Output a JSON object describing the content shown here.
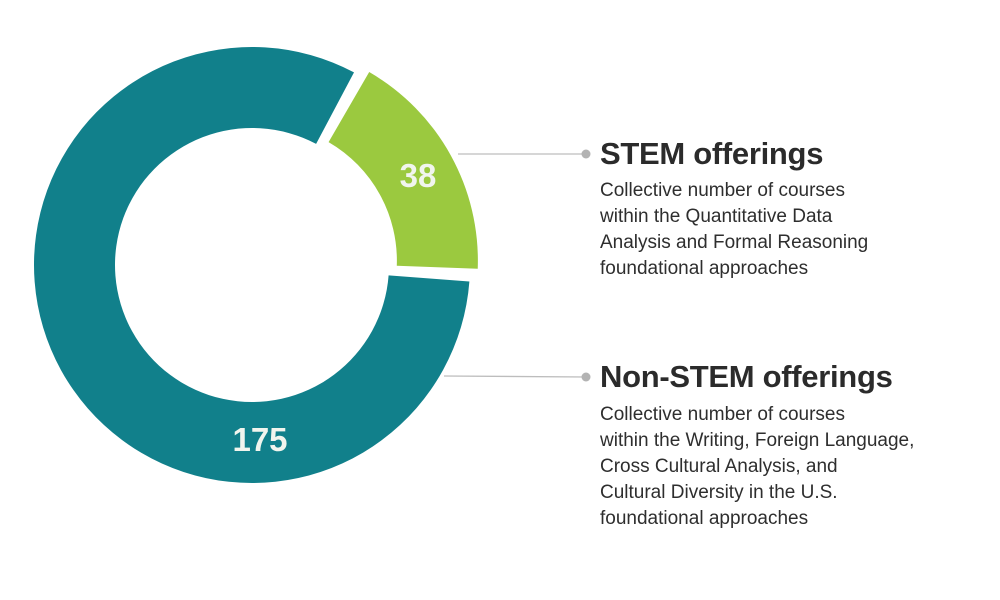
{
  "chart_data": {
    "type": "pie",
    "variant": "donut",
    "title": "",
    "categories": [
      "STEM offerings",
      "Non-STEM offerings"
    ],
    "values": [
      38,
      175
    ],
    "colors": [
      "#9bc93f",
      "#11808b"
    ],
    "data_labels": [
      "38",
      "175"
    ],
    "legend_position": "right",
    "exploded": [
      "STEM offerings"
    ]
  },
  "legend": [
    {
      "title": "STEM offerings",
      "description_lines": [
        "Collective number of courses",
        "within the Quantitative Data",
        "Analysis and Formal Reasoning",
        "foundational approaches"
      ]
    },
    {
      "title": "Non-STEM offerings",
      "description_lines": [
        "Collective number of courses",
        "within the Writing, Foreign Language,",
        "Cross Cultural Analysis, and",
        "Cultural Diversity in the U.S.",
        "foundational approaches"
      ]
    }
  ],
  "colors": {
    "stem": "#9bc93f",
    "non_stem": "#11808b",
    "leader_line": "#bdbdbd",
    "leader_dot": "#b3b3b3",
    "label_text": "#f1f5ee"
  }
}
